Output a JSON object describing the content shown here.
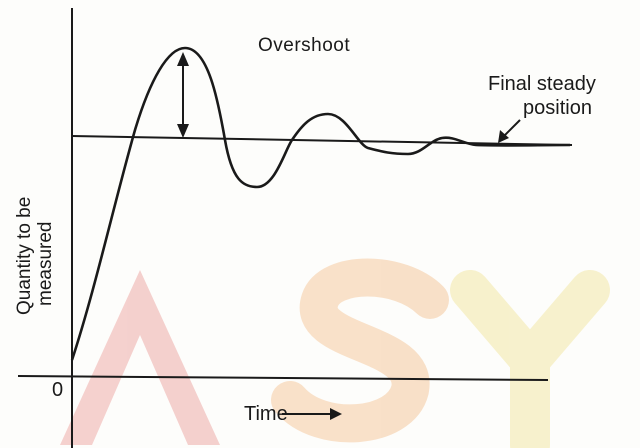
{
  "diagram": {
    "overshoot_label": "Overshoot",
    "final_position_label_line1": "Final steady",
    "final_position_label_line2": "position",
    "y_axis_label_line1": "Quantity to be",
    "y_axis_label_line2": "measured",
    "origin_label": "0",
    "x_axis_label": "Time",
    "watermark_text": "ASY",
    "colors": {
      "ink": "#1a1a1a",
      "watermark_red": "#f3c9c6",
      "watermark_orange": "#f8dcc0",
      "watermark_yellow": "#f6efc4"
    }
  }
}
